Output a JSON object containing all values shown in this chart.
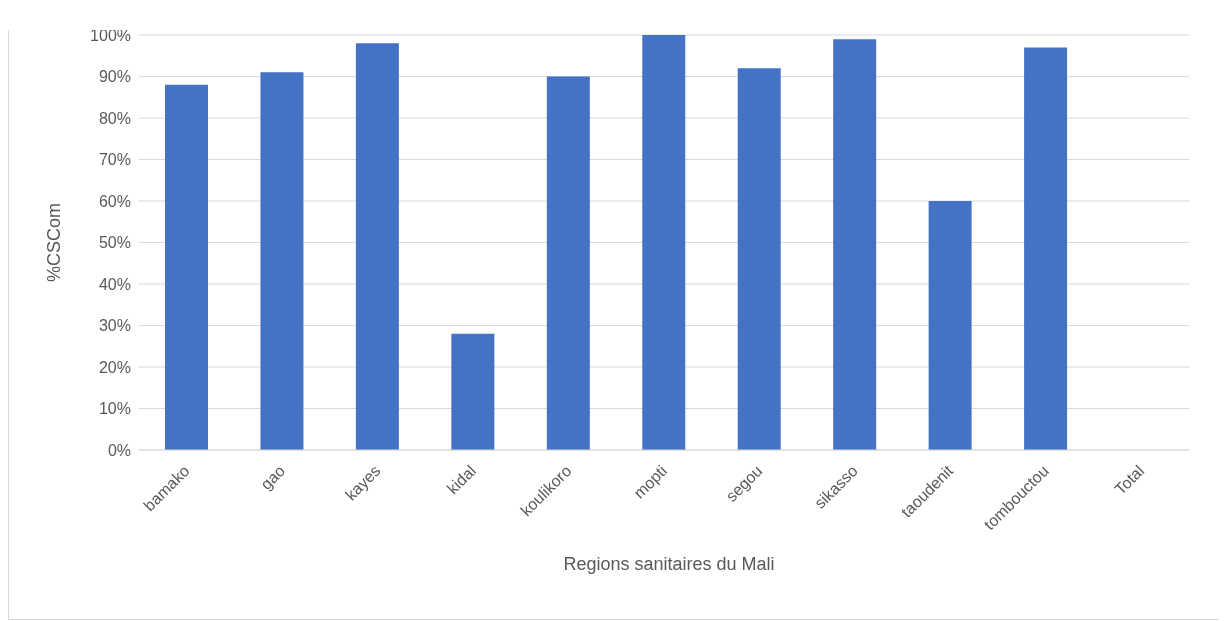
{
  "chart_data": {
    "type": "bar",
    "xlabel": "Regions sanitaires du Mali",
    "ylabel": "%CSCom",
    "categories": [
      "bamako",
      "gao",
      "kayes",
      "kidal",
      "koulikoro",
      "mopti",
      "segou",
      "sikasso",
      "taoudenit",
      "tombouctou",
      "Total"
    ],
    "values": [
      88,
      91,
      98,
      28,
      90,
      100,
      92,
      99,
      60,
      97,
      null
    ],
    "color": "#4472c4",
    "ylim": [
      0,
      100
    ],
    "yticks": [
      {
        "value": 0,
        "label": "0%"
      },
      {
        "value": 10,
        "label": "10%"
      },
      {
        "value": 20,
        "label": "20%"
      },
      {
        "value": 30,
        "label": "30%"
      },
      {
        "value": 40,
        "label": "40%"
      },
      {
        "value": 50,
        "label": "50%"
      },
      {
        "value": 60,
        "label": "60%"
      },
      {
        "value": 70,
        "label": "70%"
      },
      {
        "value": 80,
        "label": "80%"
      },
      {
        "value": 90,
        "label": "90%"
      },
      {
        "value": 100,
        "label": "100%"
      }
    ],
    "grid": "y",
    "legend": false
  }
}
